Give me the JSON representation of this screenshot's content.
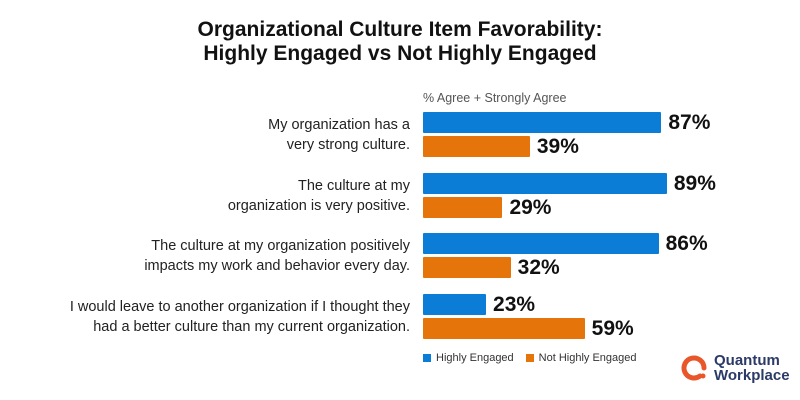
{
  "chart_data": {
    "type": "bar",
    "orientation": "horizontal",
    "title": "Organizational Culture Item Favorability:",
    "title_line2": "Highly Engaged vs Not Highly Engaged",
    "subtitle": "% Agree + Strongly Agree",
    "categories": [
      [
        "My organization has a",
        "very strong culture."
      ],
      [
        "The culture at my",
        "organization is very positive."
      ],
      [
        "The culture at my organization positively",
        "impacts my work and behavior every day."
      ],
      [
        "I would leave to another organization if I thought they",
        "had a better culture than my current organization."
      ]
    ],
    "series": [
      {
        "name": "Highly Engaged",
        "color": "#0b7dd6",
        "values": [
          87,
          89,
          86,
          23
        ],
        "labels": [
          "87%",
          "89%",
          "86%",
          "23%"
        ]
      },
      {
        "name": "Not Highly Engaged",
        "color": "#e5740b",
        "values": [
          39,
          29,
          32,
          59
        ],
        "labels": [
          "39%",
          "29%",
          "32%",
          "59%"
        ]
      }
    ],
    "xlim": [
      0,
      100
    ],
    "grid": false,
    "legend": "bottom"
  },
  "logo": {
    "line1": "Quantum",
    "line2": "Workplace",
    "color": "#e8562a"
  }
}
